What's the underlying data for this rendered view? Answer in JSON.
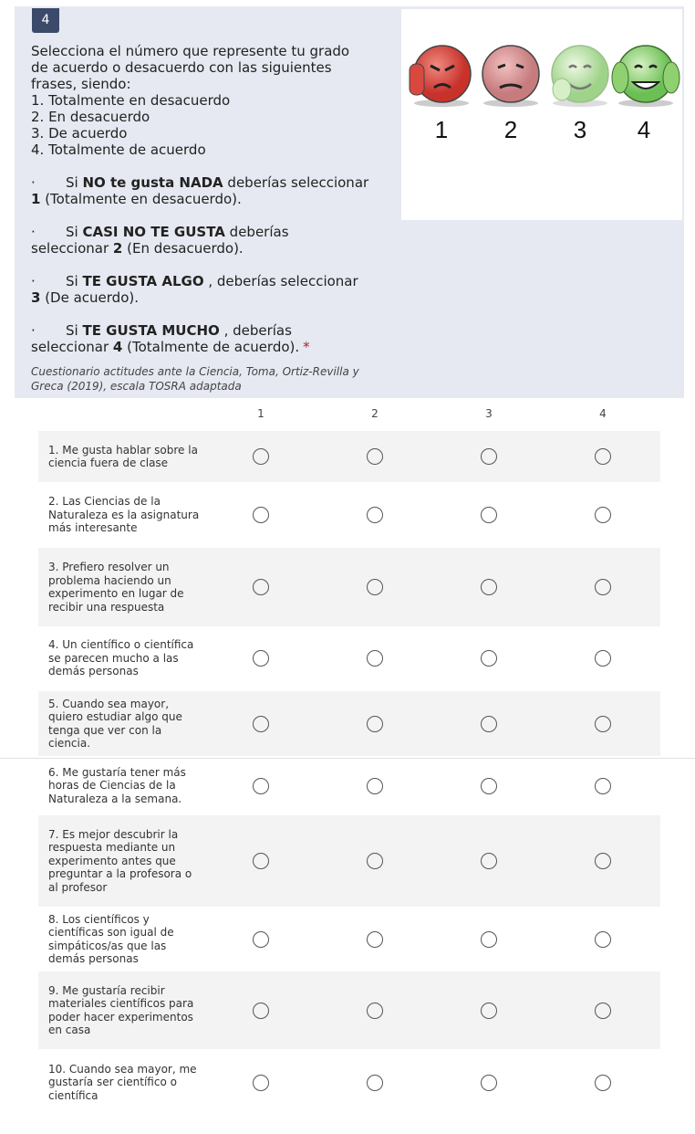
{
  "question": {
    "number": "4",
    "intro": "Selecciona el número que represente tu grado de acuerdo o desacuerdo con las siguientes frases, siendo:",
    "options": [
      "1. Totalmente en desacuerdo",
      "2. En desacuerdo",
      "3. De acuerdo",
      "4. Totalmente de acuerdo"
    ],
    "bullet": "·",
    "cases": [
      {
        "prefix": "Si ",
        "emphasis": "NO te gusta NADA",
        "middle": " deberías seleccionar ",
        "number": "1",
        "suffix": " (Totalmente en desacuerdo)."
      },
      {
        "prefix": "Si ",
        "emphasis": "CASI NO TE GUSTA",
        "middle": " deberías seleccionar ",
        "number": "2",
        "suffix": " (En desacuerdo)."
      },
      {
        "prefix": "Si ",
        "emphasis": "TE GUSTA ALGO",
        "middle": " , deberías seleccionar ",
        "number": "3",
        "suffix": " (De acuerdo)."
      },
      {
        "prefix": "Si ",
        "emphasis": "TE GUSTA MUCHO",
        "middle": " , deberías seleccionar ",
        "number": "4",
        "suffix": " (Totalmente de acuerdo)."
      }
    ],
    "required_mark": "*",
    "citation": "Cuestionario actitudes ante la Ciencia, Toma, Ortiz-Revilla y Greca (2019), escala TOSRA adaptada",
    "image_labels": [
      "1",
      "2",
      "3",
      "4"
    ]
  },
  "matrix": {
    "columns": [
      "1",
      "2",
      "3",
      "4"
    ],
    "rows": [
      "1. Me gusta hablar sobre la ciencia fuera de clase",
      "2.  Las Ciencias de la Naturaleza es la asignatura más interesante",
      "3. Prefiero resolver un problema haciendo un experimento en lugar de recibir una respuesta",
      "4. Un científico o científica se parecen mucho a las demás personas",
      "5. Cuando sea mayor, quiero estudiar algo que tenga que ver con la ciencia.",
      "6. Me gustaría tener más horas de Ciencias de la Naturaleza a la semana.",
      "7. Es mejor descubrir la respuesta mediante un experimento antes que preguntar a la profesora o al profesor",
      "8. Los científicos y científicas son igual de simpáticos/as que las demás personas",
      "9. Me gustaría recibir materiales científicos para poder hacer experimentos en casa",
      "10. Cuando sea mayor, me gustaría ser científico o científica"
    ]
  }
}
